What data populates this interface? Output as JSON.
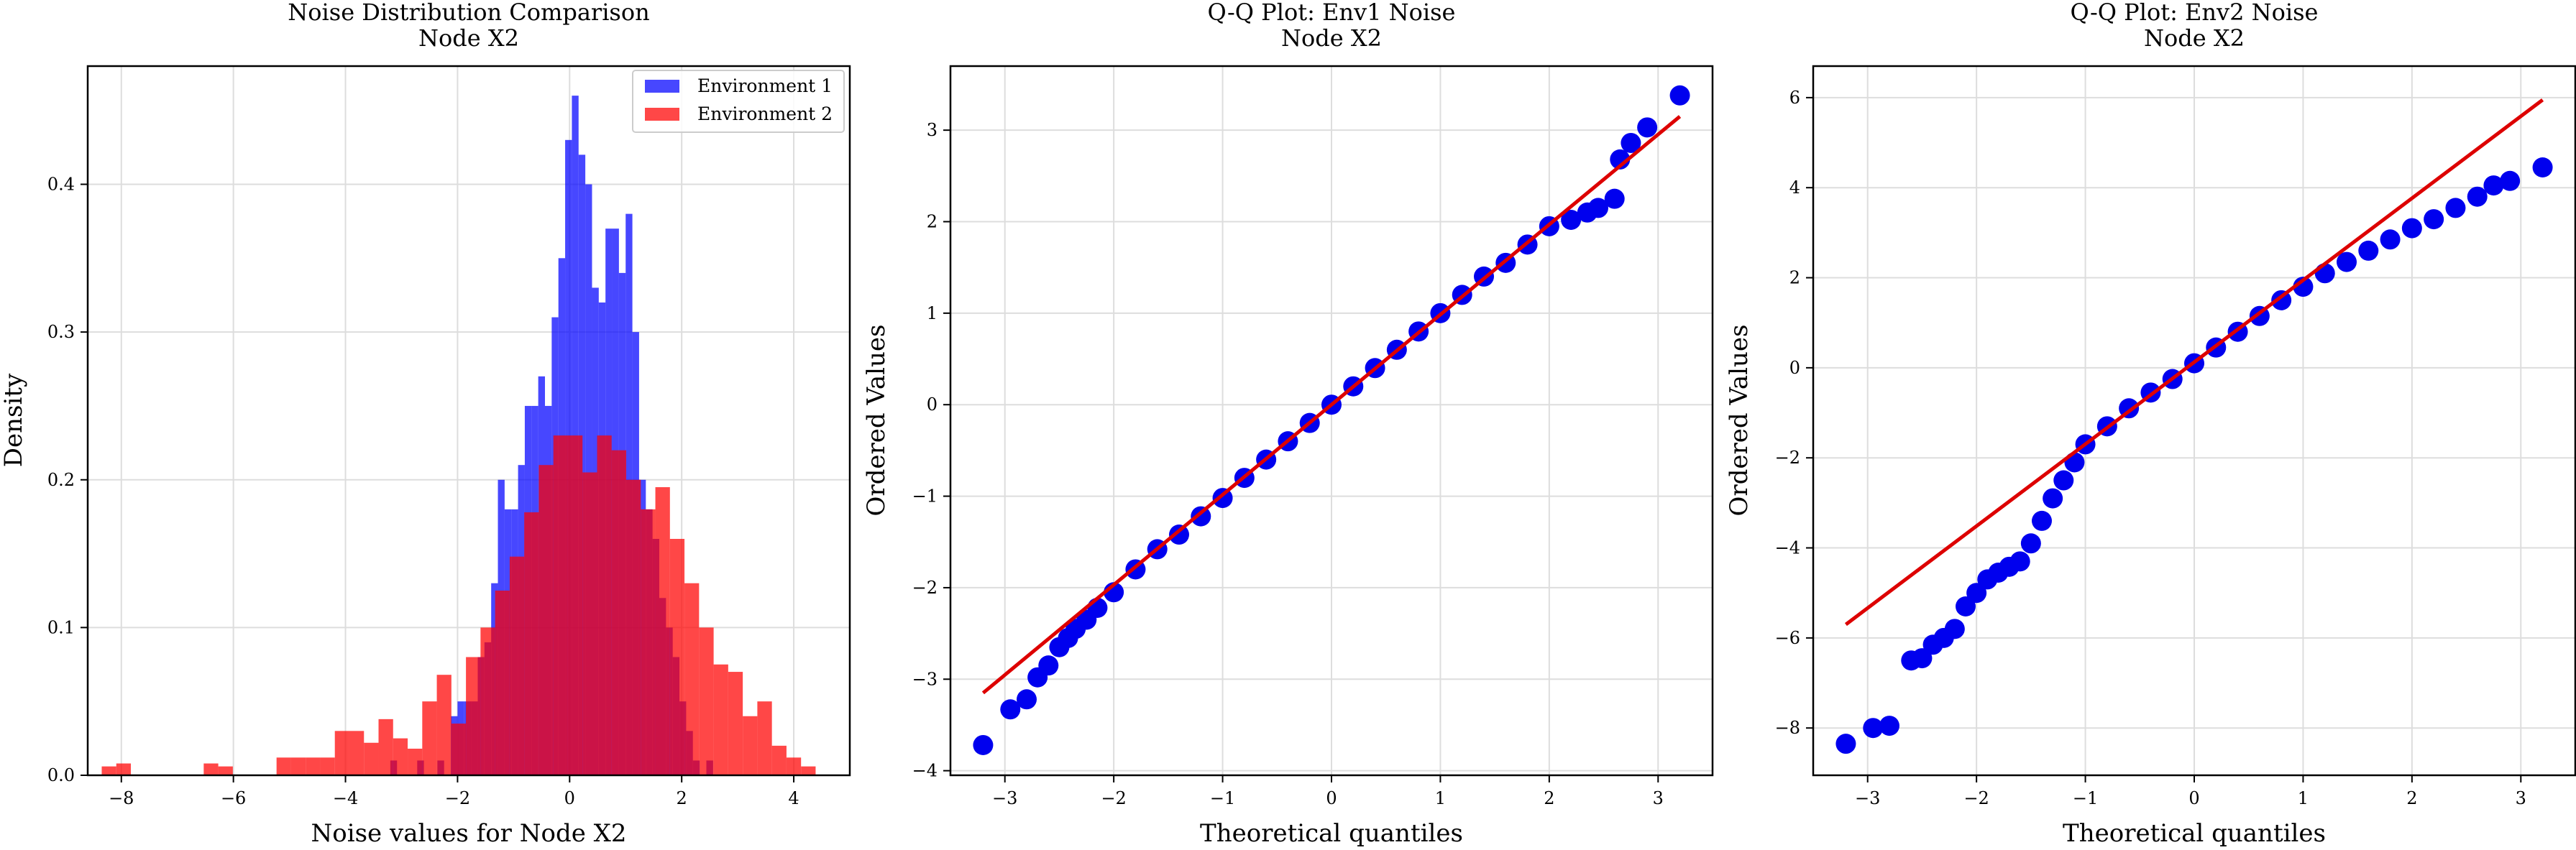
{
  "colors": {
    "env1": "#0000ff",
    "env2": "#ff0000",
    "overlap": "#c4133a",
    "grid": "#dddddd",
    "qq_points": "#0000ee",
    "qq_line": "#dd0000"
  },
  "chart_data": [
    {
      "type": "bar",
      "title": "Noise Distribution Comparison",
      "subtitle": "Node X2",
      "xlabel": "Noise values for Node X2",
      "ylabel": "Density",
      "xlim": [
        -8.6,
        5.0
      ],
      "ylim": [
        0,
        0.48
      ],
      "xticks": [
        "−8",
        "−6",
        "−4",
        "−2",
        "0",
        "2",
        "4"
      ],
      "yticks": [
        "0.0",
        "0.1",
        "0.2",
        "0.3",
        "0.4"
      ],
      "grid": true,
      "legend_position": "top-right",
      "series": [
        {
          "name": "Environment 1",
          "bin_width": 0.12,
          "bins": [
            [
              -3.2,
              0.01
            ],
            [
              -2.72,
              0.01
            ],
            [
              -2.36,
              0.01
            ],
            [
              -2.12,
              0.04
            ],
            [
              -2.0,
              0.05
            ],
            [
              -1.88,
              0.05
            ],
            [
              -1.76,
              0.05
            ],
            [
              -1.64,
              0.08
            ],
            [
              -1.52,
              0.09
            ],
            [
              -1.4,
              0.13
            ],
            [
              -1.28,
              0.2
            ],
            [
              -1.16,
              0.18
            ],
            [
              -1.04,
              0.18
            ],
            [
              -0.92,
              0.21
            ],
            [
              -0.8,
              0.25
            ],
            [
              -0.68,
              0.25
            ],
            [
              -0.56,
              0.27
            ],
            [
              -0.44,
              0.25
            ],
            [
              -0.32,
              0.31
            ],
            [
              -0.2,
              0.35
            ],
            [
              -0.08,
              0.43
            ],
            [
              0.04,
              0.46
            ],
            [
              0.16,
              0.42
            ],
            [
              0.28,
              0.4
            ],
            [
              0.4,
              0.33
            ],
            [
              0.52,
              0.32
            ],
            [
              0.64,
              0.37
            ],
            [
              0.76,
              0.37
            ],
            [
              0.88,
              0.34
            ],
            [
              1.0,
              0.38
            ],
            [
              1.12,
              0.3
            ],
            [
              1.24,
              0.2
            ],
            [
              1.36,
              0.18
            ],
            [
              1.48,
              0.16
            ],
            [
              1.6,
              0.12
            ],
            [
              1.72,
              0.1
            ],
            [
              1.84,
              0.08
            ],
            [
              1.96,
              0.05
            ],
            [
              2.08,
              0.03
            ],
            [
              2.2,
              0.01
            ],
            [
              2.44,
              0.01
            ]
          ]
        },
        {
          "name": "Environment 2",
          "bin_width": 0.26,
          "bins": [
            [
              -8.35,
              0.006
            ],
            [
              -8.09,
              0.008
            ],
            [
              -6.53,
              0.008
            ],
            [
              -6.27,
              0.006
            ],
            [
              -5.23,
              0.012
            ],
            [
              -4.97,
              0.012
            ],
            [
              -4.71,
              0.012
            ],
            [
              -4.45,
              0.012
            ],
            [
              -4.19,
              0.03
            ],
            [
              -3.93,
              0.03
            ],
            [
              -3.67,
              0.022
            ],
            [
              -3.41,
              0.038
            ],
            [
              -3.15,
              0.025
            ],
            [
              -2.89,
              0.018
            ],
            [
              -2.63,
              0.05
            ],
            [
              -2.37,
              0.068
            ],
            [
              -2.11,
              0.035
            ],
            [
              -1.85,
              0.08
            ],
            [
              -1.59,
              0.1
            ],
            [
              -1.33,
              0.125
            ],
            [
              -1.07,
              0.148
            ],
            [
              -0.81,
              0.178
            ],
            [
              -0.55,
              0.21
            ],
            [
              -0.29,
              0.23
            ],
            [
              -0.03,
              0.23
            ],
            [
              0.23,
              0.205
            ],
            [
              0.49,
              0.23
            ],
            [
              0.75,
              0.22
            ],
            [
              1.01,
              0.2
            ],
            [
              1.27,
              0.18
            ],
            [
              1.53,
              0.195
            ],
            [
              1.79,
              0.16
            ],
            [
              2.05,
              0.13
            ],
            [
              2.31,
              0.1
            ],
            [
              2.57,
              0.075
            ],
            [
              2.83,
              0.07
            ],
            [
              3.09,
              0.04
            ],
            [
              3.35,
              0.05
            ],
            [
              3.61,
              0.02
            ],
            [
              3.87,
              0.012
            ],
            [
              4.13,
              0.006
            ]
          ]
        }
      ]
    },
    {
      "type": "scatter",
      "title": "Q-Q Plot: Env1 Noise",
      "subtitle": "Node X2",
      "xlabel": "Theoretical quantiles",
      "ylabel": "Ordered Values",
      "xlim": [
        -3.5,
        3.5
      ],
      "ylim": [
        -4.05,
        3.7
      ],
      "xticks": [
        "−3",
        "−2",
        "−1",
        "0",
        "1",
        "2",
        "3"
      ],
      "yticks": [
        "−4",
        "−3",
        "−2",
        "−1",
        "0",
        "1",
        "2",
        "3"
      ],
      "grid": true,
      "fit_line": [
        [
          -3.2,
          -3.15
        ],
        [
          3.2,
          3.15
        ]
      ],
      "points": [
        [
          -3.2,
          -3.72
        ],
        [
          -2.95,
          -3.33
        ],
        [
          -2.8,
          -3.22
        ],
        [
          -2.7,
          -2.98
        ],
        [
          -2.6,
          -2.85
        ],
        [
          -2.5,
          -2.65
        ],
        [
          -2.42,
          -2.55
        ],
        [
          -2.35,
          -2.45
        ],
        [
          -2.25,
          -2.35
        ],
        [
          -2.15,
          -2.22
        ],
        [
          -2.0,
          -2.05
        ],
        [
          -1.8,
          -1.8
        ],
        [
          -1.6,
          -1.58
        ],
        [
          -1.4,
          -1.42
        ],
        [
          -1.2,
          -1.22
        ],
        [
          -1.0,
          -1.02
        ],
        [
          -0.8,
          -0.8
        ],
        [
          -0.6,
          -0.6
        ],
        [
          -0.4,
          -0.4
        ],
        [
          -0.2,
          -0.2
        ],
        [
          0.0,
          0.0
        ],
        [
          0.2,
          0.2
        ],
        [
          0.4,
          0.4
        ],
        [
          0.6,
          0.6
        ],
        [
          0.8,
          0.8
        ],
        [
          1.0,
          1.0
        ],
        [
          1.2,
          1.2
        ],
        [
          1.4,
          1.4
        ],
        [
          1.6,
          1.55
        ],
        [
          1.8,
          1.75
        ],
        [
          2.0,
          1.95
        ],
        [
          2.2,
          2.02
        ],
        [
          2.35,
          2.1
        ],
        [
          2.45,
          2.15
        ],
        [
          2.6,
          2.25
        ],
        [
          2.65,
          2.68
        ],
        [
          2.75,
          2.86
        ],
        [
          2.9,
          3.03
        ],
        [
          3.2,
          3.38
        ]
      ]
    },
    {
      "type": "scatter",
      "title": "Q-Q Plot: Env2 Noise",
      "subtitle": "Node X2",
      "xlabel": "Theoretical quantiles",
      "ylabel": "Ordered Values",
      "xlim": [
        -3.5,
        3.5
      ],
      "ylim": [
        -9.05,
        6.7
      ],
      "xticks": [
        "−3",
        "−2",
        "−1",
        "0",
        "1",
        "2",
        "3"
      ],
      "yticks": [
        "−8",
        "−6",
        "−4",
        "−2",
        "0",
        "2",
        "4",
        "6"
      ],
      "grid": true,
      "fit_line": [
        [
          -3.2,
          -5.7
        ],
        [
          3.2,
          5.95
        ]
      ],
      "points": [
        [
          -3.2,
          -8.35
        ],
        [
          -2.95,
          -8.0
        ],
        [
          -2.8,
          -7.95
        ],
        [
          -2.6,
          -6.5
        ],
        [
          -2.5,
          -6.45
        ],
        [
          -2.4,
          -6.15
        ],
        [
          -2.3,
          -6.0
        ],
        [
          -2.2,
          -5.8
        ],
        [
          -2.1,
          -5.3
        ],
        [
          -2.0,
          -5.0
        ],
        [
          -1.9,
          -4.7
        ],
        [
          -1.8,
          -4.55
        ],
        [
          -1.7,
          -4.42
        ],
        [
          -1.6,
          -4.3
        ],
        [
          -1.5,
          -3.9
        ],
        [
          -1.4,
          -3.4
        ],
        [
          -1.3,
          -2.9
        ],
        [
          -1.2,
          -2.5
        ],
        [
          -1.1,
          -2.1
        ],
        [
          -1.0,
          -1.7
        ],
        [
          -0.8,
          -1.3
        ],
        [
          -0.6,
          -0.9
        ],
        [
          -0.4,
          -0.55
        ],
        [
          -0.2,
          -0.25
        ],
        [
          0.0,
          0.1
        ],
        [
          0.2,
          0.45
        ],
        [
          0.4,
          0.8
        ],
        [
          0.6,
          1.15
        ],
        [
          0.8,
          1.5
        ],
        [
          1.0,
          1.8
        ],
        [
          1.2,
          2.1
        ],
        [
          1.4,
          2.35
        ],
        [
          1.6,
          2.6
        ],
        [
          1.8,
          2.85
        ],
        [
          2.0,
          3.1
        ],
        [
          2.2,
          3.3
        ],
        [
          2.4,
          3.55
        ],
        [
          2.6,
          3.8
        ],
        [
          2.75,
          4.05
        ],
        [
          2.9,
          4.15
        ],
        [
          3.2,
          4.45
        ]
      ]
    }
  ]
}
